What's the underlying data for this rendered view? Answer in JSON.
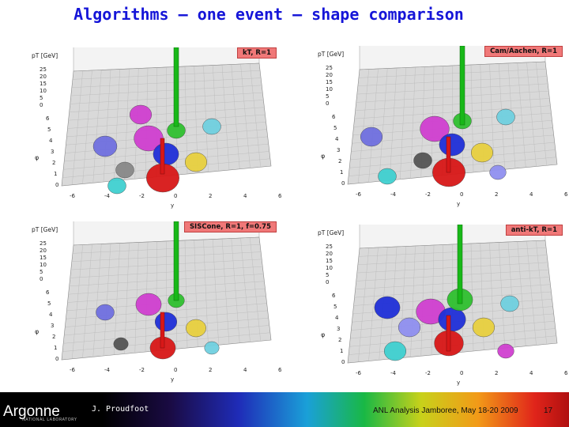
{
  "slide": {
    "title": "Algorithms – one event – shape comparison",
    "footer": {
      "logo": "Argonne",
      "logo_sub": "NATIONAL LABORATORY",
      "author": "J. Proudfoot",
      "event": "ANL Analysis Jamboree, May 18-20 2009",
      "slide_number": "17"
    }
  },
  "panels": [
    {
      "label": "kT, R=1",
      "ylabel": "pT [GeV]",
      "xlabel": "y",
      "philabel": "φ"
    },
    {
      "label": "Cam/Aachen, R=1",
      "ylabel": "pT [GeV]",
      "xlabel": "y",
      "philabel": "φ"
    },
    {
      "label": "SISCone, R=1, f=0.75",
      "ylabel": "pT [GeV]",
      "xlabel": "y",
      "philabel": "φ"
    },
    {
      "label": "anti-kT, R=1",
      "ylabel": "pT [GeV]",
      "xlabel": "y",
      "philabel": "φ"
    }
  ],
  "axes": {
    "pt_ticks": [
      "25",
      "20",
      "15",
      "10",
      "5",
      "0"
    ],
    "phi_ticks": [
      "6",
      "5",
      "4",
      "3",
      "2",
      "1",
      "0"
    ],
    "y_ticks": [
      "-6",
      "-4",
      "-2",
      "0",
      "2",
      "4",
      "6"
    ]
  },
  "colors": {
    "title": "#1515d8",
    "panel_label_bg": "#f07878",
    "grid": "#b8b8b8",
    "plane": "#d9d9d9",
    "green_tower": "#18b818",
    "red_tower": "#d81818"
  }
}
